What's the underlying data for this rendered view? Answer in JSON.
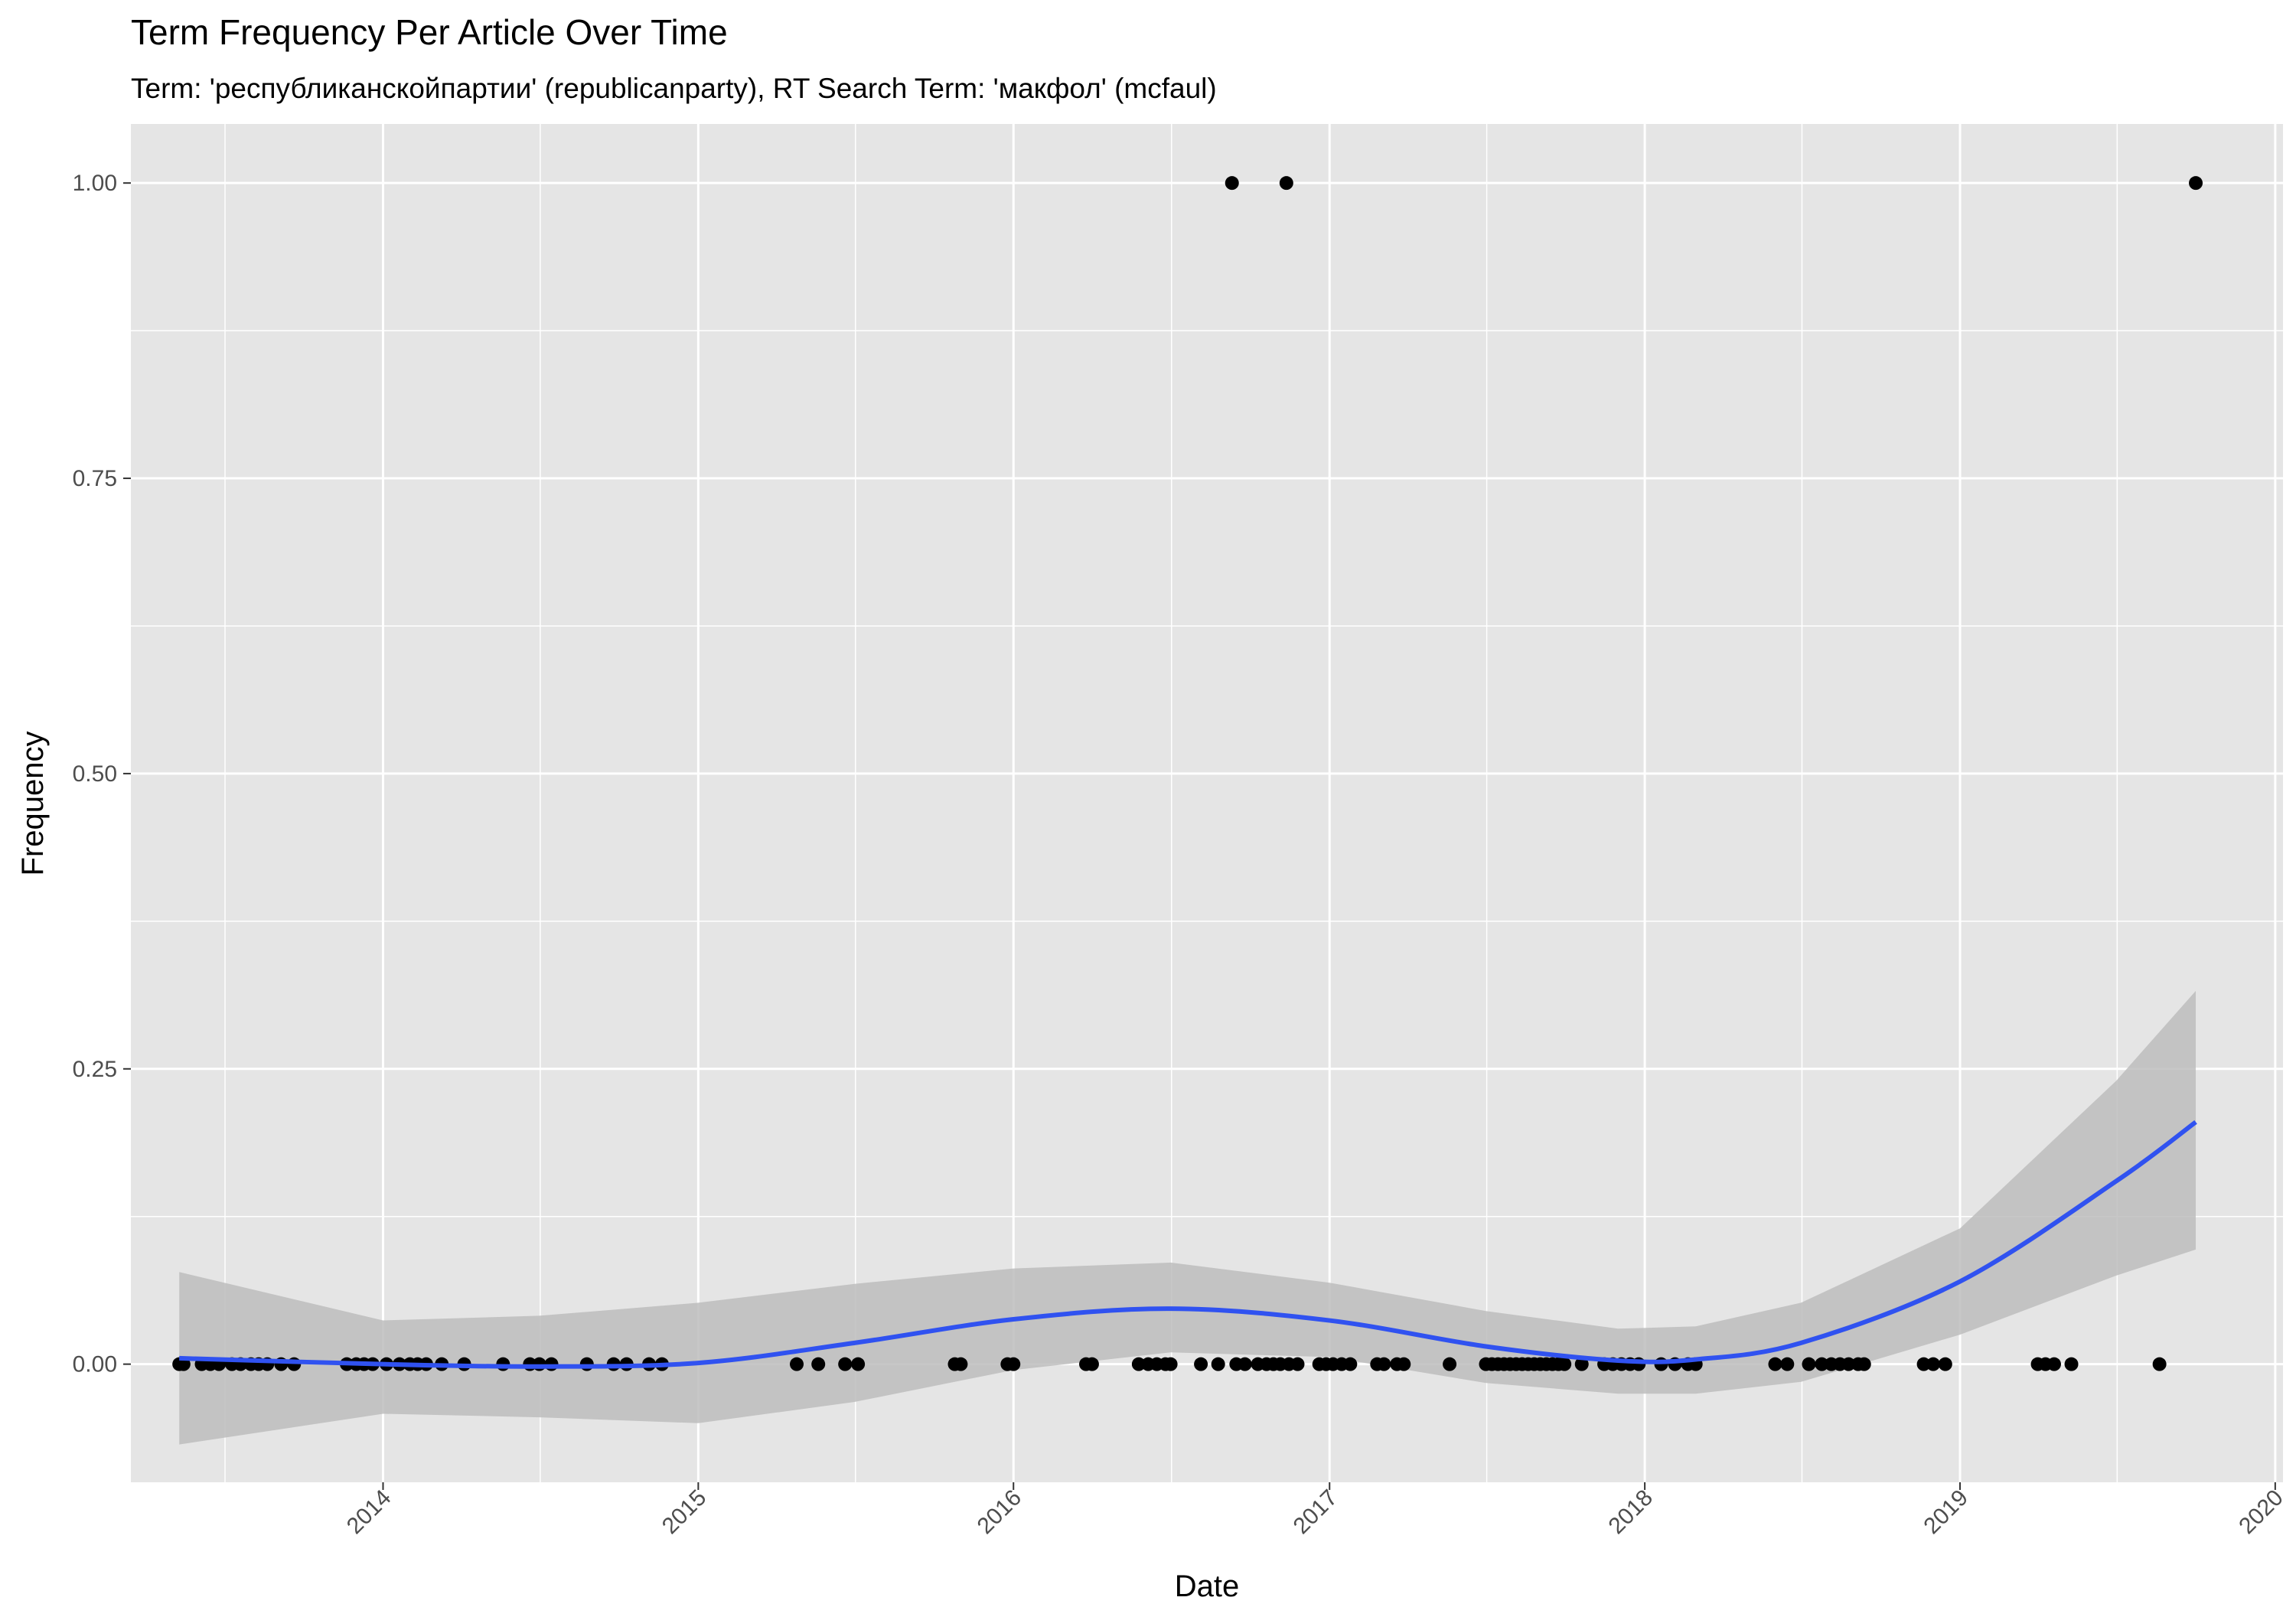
{
  "chart_data": {
    "type": "scatter",
    "title": "Term Frequency Per Article Over Time",
    "subtitle": "Term: 'республиканскойпартии' (republicanparty), RT Search Term: 'макфол' (mcfaul)",
    "xlabel": "Date",
    "ylabel": "Frequency",
    "xlim": [
      "2013-03-15",
      "2020-01-10"
    ],
    "ylim": [
      -0.1,
      1.05
    ],
    "x_ticks": [
      "2014",
      "2015",
      "2016",
      "2017",
      "2018",
      "2019",
      "2020"
    ],
    "y_ticks": [
      "0.00",
      "0.25",
      "0.50",
      "0.75",
      "1.00"
    ],
    "grid": true,
    "legend": "none",
    "colors": {
      "panel": "#e5e5e5",
      "grid": "#ffffff",
      "points": "#000000",
      "smooth_line": "#3052f0",
      "ribbon": "#bdbdbd"
    },
    "points": [
      {
        "x": "2013-05-10",
        "y": 0
      },
      {
        "x": "2013-05-15",
        "y": 0
      },
      {
        "x": "2013-06-05",
        "y": 0
      },
      {
        "x": "2013-06-15",
        "y": 0
      },
      {
        "x": "2013-06-25",
        "y": 0
      },
      {
        "x": "2013-07-10",
        "y": 0
      },
      {
        "x": "2013-07-20",
        "y": 0
      },
      {
        "x": "2013-08-01",
        "y": 0
      },
      {
        "x": "2013-08-10",
        "y": 0
      },
      {
        "x": "2013-08-20",
        "y": 0
      },
      {
        "x": "2013-09-05",
        "y": 0
      },
      {
        "x": "2013-09-20",
        "y": 0
      },
      {
        "x": "2013-11-20",
        "y": 0
      },
      {
        "x": "2013-12-01",
        "y": 0
      },
      {
        "x": "2013-12-10",
        "y": 0
      },
      {
        "x": "2013-12-20",
        "y": 0
      },
      {
        "x": "2014-01-05",
        "y": 0
      },
      {
        "x": "2014-01-20",
        "y": 0
      },
      {
        "x": "2014-02-01",
        "y": 0
      },
      {
        "x": "2014-02-10",
        "y": 0
      },
      {
        "x": "2014-02-20",
        "y": 0
      },
      {
        "x": "2014-03-10",
        "y": 0
      },
      {
        "x": "2014-04-05",
        "y": 0
      },
      {
        "x": "2014-05-20",
        "y": 0
      },
      {
        "x": "2014-06-20",
        "y": 0
      },
      {
        "x": "2014-07-01",
        "y": 0
      },
      {
        "x": "2014-07-15",
        "y": 0
      },
      {
        "x": "2014-08-25",
        "y": 0
      },
      {
        "x": "2014-09-25",
        "y": 0
      },
      {
        "x": "2014-10-10",
        "y": 0
      },
      {
        "x": "2014-11-05",
        "y": 0
      },
      {
        "x": "2014-11-20",
        "y": 0
      },
      {
        "x": "2015-04-25",
        "y": 0
      },
      {
        "x": "2015-05-20",
        "y": 0
      },
      {
        "x": "2015-06-20",
        "y": 0
      },
      {
        "x": "2015-07-05",
        "y": 0
      },
      {
        "x": "2015-10-25",
        "y": 0
      },
      {
        "x": "2015-11-01",
        "y": 0
      },
      {
        "x": "2015-12-25",
        "y": 0
      },
      {
        "x": "2016-01-01",
        "y": 0
      },
      {
        "x": "2016-03-25",
        "y": 0
      },
      {
        "x": "2016-04-01",
        "y": 0
      },
      {
        "x": "2016-05-25",
        "y": 0
      },
      {
        "x": "2016-06-05",
        "y": 0
      },
      {
        "x": "2016-06-15",
        "y": 0
      },
      {
        "x": "2016-06-25",
        "y": 0
      },
      {
        "x": "2016-07-01",
        "y": 0
      },
      {
        "x": "2016-08-05",
        "y": 0
      },
      {
        "x": "2016-08-25",
        "y": 0
      },
      {
        "x": "2016-09-10",
        "y": 1
      },
      {
        "x": "2016-09-15",
        "y": 0
      },
      {
        "x": "2016-09-25",
        "y": 0
      },
      {
        "x": "2016-10-10",
        "y": 0
      },
      {
        "x": "2016-10-20",
        "y": 0
      },
      {
        "x": "2016-10-28",
        "y": 0
      },
      {
        "x": "2016-11-05",
        "y": 0
      },
      {
        "x": "2016-11-12",
        "y": 1
      },
      {
        "x": "2016-11-15",
        "y": 0
      },
      {
        "x": "2016-11-25",
        "y": 0
      },
      {
        "x": "2016-12-20",
        "y": 0
      },
      {
        "x": "2016-12-28",
        "y": 0
      },
      {
        "x": "2017-01-05",
        "y": 0
      },
      {
        "x": "2017-01-15",
        "y": 0
      },
      {
        "x": "2017-01-25",
        "y": 0
      },
      {
        "x": "2017-02-25",
        "y": 0
      },
      {
        "x": "2017-03-05",
        "y": 0
      },
      {
        "x": "2017-03-20",
        "y": 0
      },
      {
        "x": "2017-03-28",
        "y": 0
      },
      {
        "x": "2017-05-20",
        "y": 0
      },
      {
        "x": "2017-07-01",
        "y": 0
      },
      {
        "x": "2017-07-08",
        "y": 0
      },
      {
        "x": "2017-07-15",
        "y": 0
      },
      {
        "x": "2017-07-22",
        "y": 0
      },
      {
        "x": "2017-07-29",
        "y": 0
      },
      {
        "x": "2017-08-05",
        "y": 0
      },
      {
        "x": "2017-08-12",
        "y": 0
      },
      {
        "x": "2017-08-19",
        "y": 0
      },
      {
        "x": "2017-08-26",
        "y": 0
      },
      {
        "x": "2017-09-02",
        "y": 0
      },
      {
        "x": "2017-09-09",
        "y": 0
      },
      {
        "x": "2017-09-16",
        "y": 0
      },
      {
        "x": "2017-09-23",
        "y": 0
      },
      {
        "x": "2017-09-30",
        "y": 0
      },
      {
        "x": "2017-10-20",
        "y": 0
      },
      {
        "x": "2017-11-15",
        "y": 0
      },
      {
        "x": "2017-11-25",
        "y": 0
      },
      {
        "x": "2017-12-05",
        "y": 0
      },
      {
        "x": "2017-12-15",
        "y": 0
      },
      {
        "x": "2017-12-25",
        "y": 0
      },
      {
        "x": "2018-01-20",
        "y": 0
      },
      {
        "x": "2018-02-05",
        "y": 0
      },
      {
        "x": "2018-02-20",
        "y": 0
      },
      {
        "x": "2018-03-01",
        "y": 0
      },
      {
        "x": "2018-06-01",
        "y": 0
      },
      {
        "x": "2018-06-15",
        "y": 0
      },
      {
        "x": "2018-07-10",
        "y": 0
      },
      {
        "x": "2018-07-25",
        "y": 0
      },
      {
        "x": "2018-08-05",
        "y": 0
      },
      {
        "x": "2018-08-15",
        "y": 0
      },
      {
        "x": "2018-08-25",
        "y": 0
      },
      {
        "x": "2018-09-05",
        "y": 0
      },
      {
        "x": "2018-09-12",
        "y": 0
      },
      {
        "x": "2018-11-20",
        "y": 0
      },
      {
        "x": "2018-12-01",
        "y": 0
      },
      {
        "x": "2018-12-15",
        "y": 0
      },
      {
        "x": "2019-04-01",
        "y": 0
      },
      {
        "x": "2019-04-10",
        "y": 0
      },
      {
        "x": "2019-04-20",
        "y": 0
      },
      {
        "x": "2019-05-10",
        "y": 0
      },
      {
        "x": "2019-08-20",
        "y": 0
      },
      {
        "x": "2019-10-01",
        "y": 1
      }
    ],
    "smooth": {
      "x": [
        "2013-05-10",
        "2014-01-01",
        "2014-07-01",
        "2015-01-01",
        "2015-07-01",
        "2016-01-01",
        "2016-07-01",
        "2017-01-01",
        "2017-07-01",
        "2017-12-01",
        "2018-03-01",
        "2018-07-01",
        "2019-01-01",
        "2019-07-01",
        "2019-10-01"
      ],
      "y": [
        0.005,
        0.0,
        -0.002,
        0.001,
        0.018,
        0.038,
        0.047,
        0.037,
        0.015,
        0.003,
        0.004,
        0.018,
        0.07,
        0.155,
        0.205
      ],
      "ymin": [
        -0.068,
        -0.042,
        -0.045,
        -0.05,
        -0.032,
        -0.005,
        0.01,
        0.006,
        -0.016,
        -0.025,
        -0.025,
        -0.015,
        0.025,
        0.075,
        0.097
      ],
      "ymax": [
        0.078,
        0.037,
        0.041,
        0.052,
        0.068,
        0.081,
        0.086,
        0.069,
        0.045,
        0.03,
        0.032,
        0.052,
        0.115,
        0.24,
        0.316
      ]
    }
  }
}
